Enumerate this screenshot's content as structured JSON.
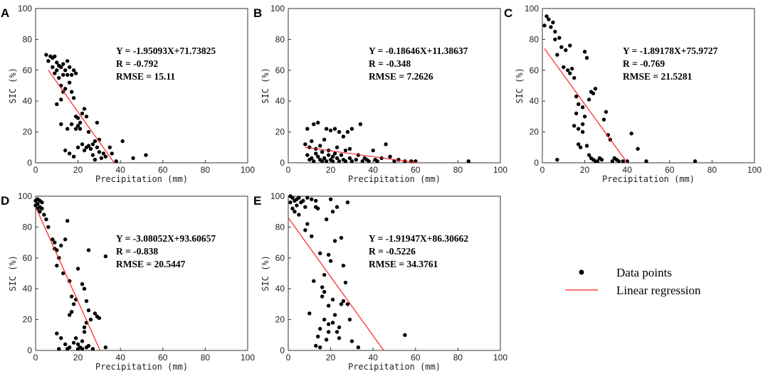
{
  "colors": {
    "points": "#000000",
    "line": "#ff2020",
    "axis": "#333333"
  },
  "legend": {
    "points_label": "Data points",
    "line_label": "Linear regression"
  },
  "chart_data": [
    {
      "type": "scatter",
      "label": "A",
      "xlabel": "Precipitation (mm)",
      "ylabel": "SIC (%)",
      "xlim": [
        0,
        100
      ],
      "ylim": [
        0,
        100
      ],
      "xticks": [
        "0",
        "20",
        "40",
        "60",
        "80",
        "100"
      ],
      "yticks": [
        "0",
        "20",
        "40",
        "60",
        "80",
        "100"
      ],
      "equation": "Y = -1.95093X+71.73825",
      "r_text": "R = -0.792",
      "rmse_text": "RMSE = 15.11",
      "regression": {
        "x": [
          6,
          37
        ],
        "y": [
          60,
          0
        ]
      },
      "points": [
        [
          5,
          70
        ],
        [
          6,
          66
        ],
        [
          7,
          69
        ],
        [
          8,
          68
        ],
        [
          8,
          62
        ],
        [
          9,
          69
        ],
        [
          9,
          58
        ],
        [
          10,
          65
        ],
        [
          10,
          60
        ],
        [
          11,
          63
        ],
        [
          11,
          55
        ],
        [
          12,
          62
        ],
        [
          12,
          50
        ],
        [
          13,
          57
        ],
        [
          13,
          64
        ],
        [
          14,
          60
        ],
        [
          14,
          48
        ],
        [
          15,
          66
        ],
        [
          15,
          57
        ],
        [
          16,
          62
        ],
        [
          16,
          52
        ],
        [
          17,
          57
        ],
        [
          17,
          46
        ],
        [
          18,
          60
        ],
        [
          18,
          42
        ],
        [
          19,
          58
        ],
        [
          19,
          30
        ],
        [
          20,
          29
        ],
        [
          20,
          24
        ],
        [
          21,
          22
        ],
        [
          21,
          26
        ],
        [
          22,
          32
        ],
        [
          22,
          12
        ],
        [
          23,
          35
        ],
        [
          23,
          8
        ],
        [
          24,
          10
        ],
        [
          24,
          30
        ],
        [
          25,
          11
        ],
        [
          25,
          20
        ],
        [
          26,
          9
        ],
        [
          27,
          12
        ],
        [
          27,
          5
        ],
        [
          28,
          14
        ],
        [
          28,
          2
        ],
        [
          29,
          10
        ],
        [
          29,
          26
        ],
        [
          30,
          7
        ],
        [
          30,
          15
        ],
        [
          31,
          3
        ],
        [
          32,
          6
        ],
        [
          33,
          4
        ],
        [
          35,
          10
        ],
        [
          36,
          6
        ],
        [
          38,
          1
        ],
        [
          41,
          14
        ],
        [
          46,
          3
        ],
        [
          52,
          5
        ],
        [
          14,
          8
        ],
        [
          16,
          6
        ],
        [
          18,
          4
        ],
        [
          20,
          10
        ],
        [
          12,
          25
        ],
        [
          15,
          22
        ],
        [
          17,
          25
        ],
        [
          19,
          22
        ],
        [
          10,
          38
        ],
        [
          12,
          41
        ],
        [
          13,
          46
        ]
      ]
    },
    {
      "type": "scatter",
      "label": "B",
      "xlabel": "Precipitation (mm)",
      "ylabel": "SIC (%)",
      "xlim": [
        0,
        100
      ],
      "ylim": [
        0,
        100
      ],
      "xticks": [
        "0",
        "20",
        "40",
        "60",
        "80",
        "100"
      ],
      "yticks": [
        "0",
        "20",
        "40",
        "60",
        "80",
        "100"
      ],
      "equation": "Y = -0.18646X+11.38637",
      "r_text": "R = -0.348",
      "rmse_text": "RMSE = 7.2626",
      "regression": {
        "x": [
          8,
          61
        ],
        "y": [
          10,
          0
        ]
      },
      "points": [
        [
          8,
          12
        ],
        [
          9,
          22
        ],
        [
          9,
          5
        ],
        [
          10,
          10
        ],
        [
          10,
          2
        ],
        [
          11,
          3
        ],
        [
          11,
          14
        ],
        [
          12,
          1
        ],
        [
          12,
          25
        ],
        [
          13,
          6
        ],
        [
          13,
          9
        ],
        [
          14,
          4
        ],
        [
          14,
          26
        ],
        [
          15,
          2
        ],
        [
          15,
          11
        ],
        [
          16,
          7
        ],
        [
          16,
          1
        ],
        [
          17,
          15
        ],
        [
          17,
          3
        ],
        [
          18,
          1
        ],
        [
          18,
          22
        ],
        [
          19,
          5
        ],
        [
          19,
          8
        ],
        [
          20,
          2
        ],
        [
          20,
          21
        ],
        [
          21,
          4
        ],
        [
          21,
          1
        ],
        [
          22,
          6
        ],
        [
          22,
          22
        ],
        [
          23,
          3
        ],
        [
          23,
          10
        ],
        [
          24,
          1
        ],
        [
          24,
          20
        ],
        [
          25,
          5
        ],
        [
          26,
          2
        ],
        [
          26,
          17
        ],
        [
          27,
          8
        ],
        [
          27,
          1
        ],
        [
          28,
          20
        ],
        [
          29,
          3
        ],
        [
          29,
          9
        ],
        [
          30,
          1
        ],
        [
          30,
          22
        ],
        [
          32,
          2
        ],
        [
          33,
          5
        ],
        [
          34,
          25
        ],
        [
          35,
          1
        ],
        [
          36,
          3
        ],
        [
          37,
          2
        ],
        [
          38,
          1
        ],
        [
          40,
          8
        ],
        [
          41,
          2
        ],
        [
          42,
          1
        ],
        [
          44,
          3
        ],
        [
          46,
          12
        ],
        [
          48,
          4
        ],
        [
          50,
          1
        ],
        [
          52,
          2
        ],
        [
          55,
          1
        ],
        [
          58,
          1
        ],
        [
          60,
          1
        ],
        [
          85,
          1
        ]
      ]
    },
    {
      "type": "scatter",
      "label": "C",
      "xlabel": "Precipitation (mm)",
      "ylabel": "SIC (%)",
      "xlim": [
        0,
        100
      ],
      "ylim": [
        0,
        100
      ],
      "xticks": [
        "0",
        "20",
        "40",
        "60",
        "80",
        "100"
      ],
      "yticks": [
        "0",
        "20",
        "40",
        "60",
        "80",
        "100"
      ],
      "equation": "Y = -1.89178X+75.9727",
      "r_text": "R = -0.769",
      "rmse_text": "RMSE = 21.5281",
      "regression": {
        "x": [
          1,
          40
        ],
        "y": [
          74,
          0
        ]
      },
      "points": [
        [
          1,
          89
        ],
        [
          2,
          95
        ],
        [
          3,
          93
        ],
        [
          4,
          88
        ],
        [
          5,
          91
        ],
        [
          6,
          85
        ],
        [
          6,
          80
        ],
        [
          7,
          70
        ],
        [
          8,
          81
        ],
        [
          9,
          75
        ],
        [
          10,
          62
        ],
        [
          11,
          73
        ],
        [
          12,
          60
        ],
        [
          13,
          58
        ],
        [
          13,
          76
        ],
        [
          14,
          61
        ],
        [
          15,
          55
        ],
        [
          16,
          43
        ],
        [
          16,
          32
        ],
        [
          17,
          38
        ],
        [
          17,
          12
        ],
        [
          18,
          10
        ],
        [
          19,
          36
        ],
        [
          19,
          25
        ],
        [
          20,
          72
        ],
        [
          20,
          30
        ],
        [
          21,
          68
        ],
        [
          21,
          11
        ],
        [
          22,
          41
        ],
        [
          22,
          5
        ],
        [
          23,
          3
        ],
        [
          23,
          46
        ],
        [
          24,
          45
        ],
        [
          24,
          2
        ],
        [
          25,
          48
        ],
        [
          25,
          1
        ],
        [
          26,
          1
        ],
        [
          27,
          3
        ],
        [
          28,
          2
        ],
        [
          29,
          28
        ],
        [
          30,
          33
        ],
        [
          31,
          18
        ],
        [
          32,
          15
        ],
        [
          33,
          1
        ],
        [
          34,
          3
        ],
        [
          35,
          2
        ],
        [
          36,
          1
        ],
        [
          38,
          1
        ],
        [
          40,
          1
        ],
        [
          42,
          19
        ],
        [
          45,
          9
        ],
        [
          49,
          1
        ],
        [
          72,
          1
        ],
        [
          15,
          24
        ],
        [
          17,
          22
        ],
        [
          19,
          20
        ],
        [
          7,
          2
        ]
      ]
    },
    {
      "type": "scatter",
      "label": "D",
      "xlabel": "Precipitation (mm)",
      "ylabel": "SIC (%)",
      "xlim": [
        0,
        100
      ],
      "ylim": [
        0,
        100
      ],
      "xticks": [
        "0",
        "20",
        "40",
        "60",
        "80",
        "100"
      ],
      "yticks": [
        "0",
        "20",
        "40",
        "60",
        "80",
        "100"
      ],
      "equation": "Y = -3.08052X+93.60657",
      "r_text": "R = -0.838",
      "rmse_text": "RMSE = 20.5447",
      "regression": {
        "x": [
          0,
          30.4
        ],
        "y": [
          93,
          0
        ]
      },
      "points": [
        [
          0,
          97
        ],
        [
          0,
          94
        ],
        [
          1,
          98
        ],
        [
          1,
          95
        ],
        [
          1,
          92
        ],
        [
          2,
          97
        ],
        [
          2,
          93
        ],
        [
          2,
          90
        ],
        [
          3,
          96
        ],
        [
          3,
          92
        ],
        [
          4,
          88
        ],
        [
          5,
          85
        ],
        [
          6,
          80
        ],
        [
          8,
          72
        ],
        [
          9,
          70
        ],
        [
          9,
          66
        ],
        [
          10,
          65
        ],
        [
          10,
          55
        ],
        [
          11,
          60
        ],
        [
          12,
          68
        ],
        [
          13,
          50
        ],
        [
          14,
          72
        ],
        [
          15,
          84
        ],
        [
          16,
          45
        ],
        [
          16,
          23
        ],
        [
          17,
          25
        ],
        [
          17,
          35
        ],
        [
          18,
          30
        ],
        [
          18,
          5
        ],
        [
          19,
          33
        ],
        [
          20,
          53
        ],
        [
          20,
          4
        ],
        [
          21,
          2
        ],
        [
          22,
          6
        ],
        [
          22,
          43
        ],
        [
          23,
          40
        ],
        [
          23,
          15
        ],
        [
          24,
          18
        ],
        [
          24,
          32
        ],
        [
          25,
          26
        ],
        [
          25,
          65
        ],
        [
          26,
          20
        ],
        [
          27,
          1
        ],
        [
          28,
          24
        ],
        [
          29,
          22
        ],
        [
          30,
          21
        ],
        [
          33,
          61
        ],
        [
          10,
          11
        ],
        [
          12,
          8
        ],
        [
          14,
          4
        ],
        [
          16,
          2
        ],
        [
          19,
          8
        ],
        [
          20,
          1
        ],
        [
          22,
          1
        ],
        [
          24,
          2
        ],
        [
          33,
          2
        ],
        [
          25,
          3
        ],
        [
          11,
          1
        ],
        [
          15,
          1
        ],
        [
          23,
          12
        ]
      ]
    },
    {
      "type": "scatter",
      "label": "E",
      "xlabel": "Precipitation (mm)",
      "ylabel": "SIC (%)",
      "xlim": [
        0,
        100
      ],
      "ylim": [
        0,
        100
      ],
      "xticks": [
        "0",
        "20",
        "40",
        "60",
        "80",
        "100"
      ],
      "yticks": [
        "0",
        "20",
        "40",
        "60",
        "80",
        "100"
      ],
      "equation": "Y = -1.91947X+86.30662",
      "r_text": "R = -0.5226",
      "rmse_text": "RMSE = 34.3761",
      "regression": {
        "x": [
          0,
          45
        ],
        "y": [
          86,
          0
        ]
      },
      "points": [
        [
          1,
          100
        ],
        [
          1,
          96
        ],
        [
          2,
          99
        ],
        [
          2,
          92
        ],
        [
          3,
          97
        ],
        [
          3,
          90
        ],
        [
          4,
          98
        ],
        [
          4,
          94
        ],
        [
          5,
          99
        ],
        [
          5,
          88
        ],
        [
          6,
          96
        ],
        [
          7,
          97
        ],
        [
          8,
          93
        ],
        [
          8,
          78
        ],
        [
          9,
          82
        ],
        [
          9,
          99
        ],
        [
          10,
          24
        ],
        [
          11,
          74
        ],
        [
          12,
          45
        ],
        [
          13,
          3
        ],
        [
          13,
          97
        ],
        [
          14,
          9
        ],
        [
          14,
          92
        ],
        [
          15,
          63
        ],
        [
          15,
          14
        ],
        [
          16,
          35
        ],
        [
          16,
          41
        ],
        [
          17,
          38
        ],
        [
          17,
          49
        ],
        [
          18,
          7
        ],
        [
          18,
          85
        ],
        [
          19,
          12
        ],
        [
          19,
          29
        ],
        [
          20,
          58
        ],
        [
          20,
          98
        ],
        [
          21,
          33
        ],
        [
          21,
          18
        ],
        [
          22,
          71
        ],
        [
          22,
          23
        ],
        [
          23,
          12
        ],
        [
          23,
          93
        ],
        [
          24,
          15
        ],
        [
          24,
          8
        ],
        [
          25,
          30
        ],
        [
          25,
          73
        ],
        [
          26,
          32
        ],
        [
          26,
          55
        ],
        [
          27,
          44
        ],
        [
          28,
          30
        ],
        [
          28,
          96
        ],
        [
          29,
          20
        ],
        [
          30,
          6
        ],
        [
          33,
          2
        ],
        [
          55,
          10
        ],
        [
          19,
          17
        ],
        [
          21,
          90
        ],
        [
          15,
          2
        ],
        [
          17,
          20
        ],
        [
          19,
          62
        ],
        [
          11,
          98
        ],
        [
          13,
          93
        ]
      ]
    }
  ]
}
